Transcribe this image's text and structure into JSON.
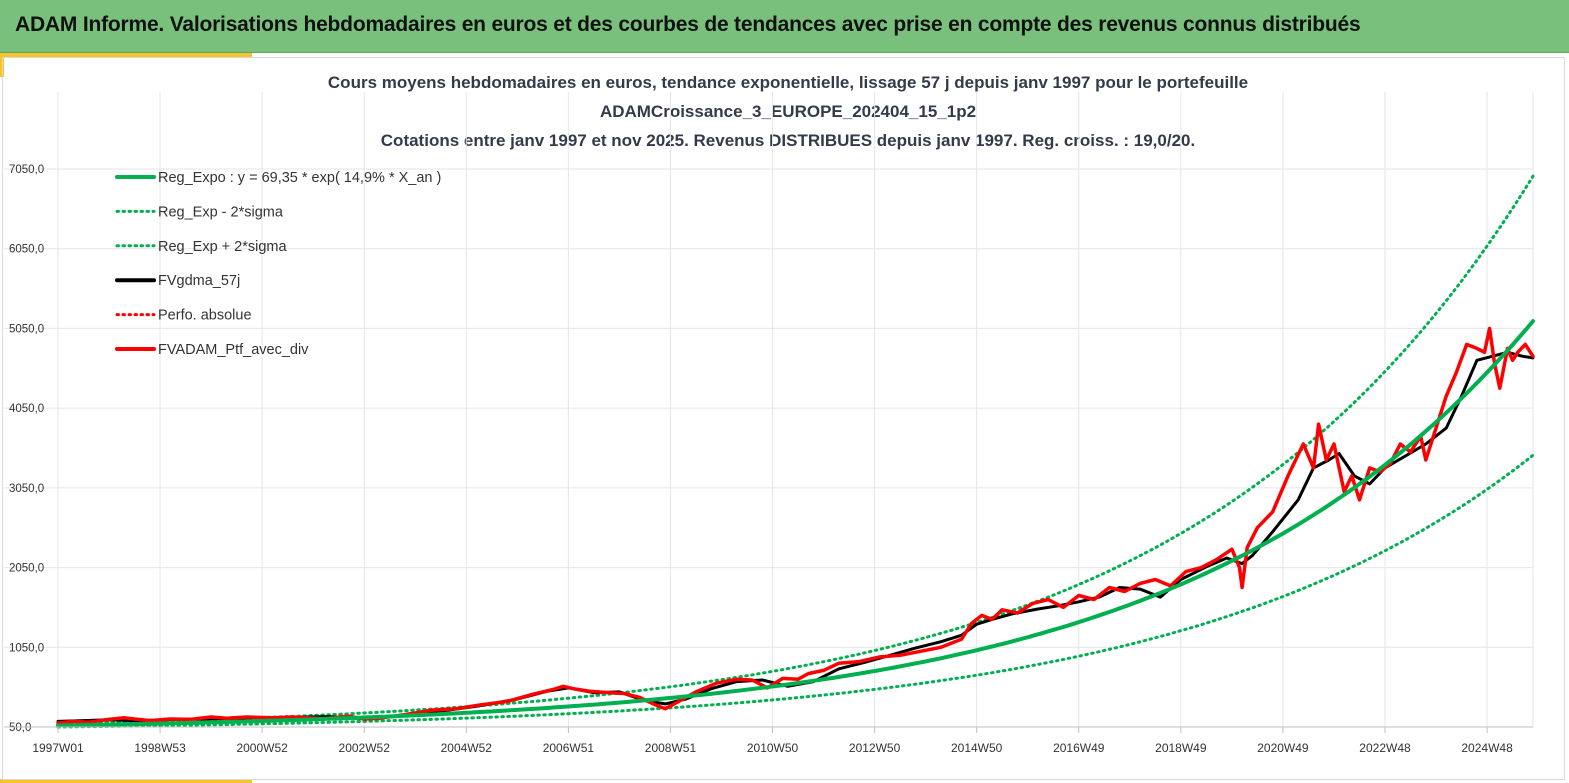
{
  "banner": {
    "title": "ADAM Informe. Valorisations hebdomadaires en euros et des courbes de tendances avec prise en compte des revenus connus distribués"
  },
  "colors": {
    "banner": "#79c07d",
    "accent": "#f7c52b",
    "green": "#00b050",
    "red": "#ff0000",
    "black": "#000000",
    "grid": "#e6e6e6"
  },
  "chart_data": {
    "type": "line",
    "title_lines": [
      "Cours moyens hebdomadaires  en euros, tendance exponentielle, lissage 57 j depuis janv 1997 pour le portefeuille",
      "ADAMCroissance_3_EUROPE_202404_15_1p2",
      "Cotations  entre janv 1997 et nov 2025. Revenus DISTRIBUES depuis janv 1997. Reg. croiss. : 19,0/20."
    ],
    "xlabel": "",
    "ylabel": "",
    "x_tick_labels": [
      "1997W01",
      "1998W53",
      "2000W52",
      "2002W52",
      "2004W52",
      "2006W51",
      "2008W51",
      "2010W50",
      "2012W50",
      "2014W50",
      "2016W49",
      "2018W49",
      "2020W49",
      "2022W48",
      "2024W48"
    ],
    "x_tick_years": [
      1997.0,
      1999.0,
      2001.0,
      2003.0,
      2005.0,
      2007.0,
      2009.0,
      2011.0,
      2013.0,
      2015.0,
      2017.0,
      2019.0,
      2021.0,
      2023.0,
      2025.0
    ],
    "x_range": [
      1997.0,
      2025.9
    ],
    "y_ticks": [
      "50,0",
      "1050,0",
      "2050,0",
      "3050,0",
      "4050,0",
      "5050,0",
      "6050,0",
      "7050,0"
    ],
    "y_tick_values": [
      50,
      1050,
      2050,
      3050,
      4050,
      5050,
      6050,
      7050
    ],
    "ylim": [
      50,
      7050
    ],
    "grid": true,
    "legend_position": "top-left",
    "series": [
      {
        "name": "Reg_Expo : y = 69,35 * exp( 14,9% *  X_an )",
        "color": "#00b050",
        "style": "solid",
        "width": 4,
        "kind": "exp",
        "a": 69.35,
        "k": 0.149
      },
      {
        "name": "Reg_Exp - 2*sigma",
        "color": "#00b050",
        "style": "dotted",
        "width": 3,
        "kind": "exp",
        "a": 50,
        "k": 0.1466
      },
      {
        "name": "Reg_Exp + 2*sigma",
        "color": "#00b050",
        "style": "dotted",
        "width": 3,
        "kind": "exp",
        "a": 92,
        "k": 0.1497
      },
      {
        "name": "FVgdma_57j",
        "color": "#000000",
        "style": "solid",
        "width": 3,
        "kind": "points",
        "x": [
          1997.0,
          1997.5,
          1998.0,
          1998.4,
          1998.8,
          1999.3,
          1999.8,
          2000.3,
          2000.8,
          2001.5,
          2002.3,
          2002.8,
          2003.2,
          2003.8,
          2004.5,
          2005.2,
          2006.0,
          2006.6,
          2007.0,
          2007.5,
          2008.0,
          2008.5,
          2008.9,
          2009.3,
          2009.8,
          2010.3,
          2010.8,
          2011.3,
          2011.8,
          2012.3,
          2012.8,
          2013.3,
          2013.8,
          2014.3,
          2014.7,
          2015.0,
          2015.3,
          2015.7,
          2016.2,
          2016.6,
          2017.0,
          2017.4,
          2017.8,
          2018.2,
          2018.6,
          2019.0,
          2019.5,
          2019.9,
          2020.2,
          2020.4,
          2020.8,
          2021.3,
          2021.6,
          2021.9,
          2022.1,
          2022.4,
          2022.7,
          2023.0,
          2023.4,
          2023.8,
          2024.2,
          2024.5,
          2024.8,
          2025.1,
          2025.4,
          2025.7,
          2025.9
        ],
        "y": [
          120,
          130,
          140,
          130,
          135,
          145,
          150,
          155,
          165,
          170,
          180,
          160,
          160,
          200,
          250,
          310,
          400,
          500,
          540,
          480,
          490,
          380,
          340,
          400,
          530,
          620,
          640,
          560,
          620,
          780,
          860,
          950,
          1040,
          1120,
          1200,
          1340,
          1400,
          1470,
          1530,
          1570,
          1620,
          1680,
          1800,
          1780,
          1680,
          1900,
          2060,
          2170,
          2100,
          2200,
          2500,
          2900,
          3300,
          3400,
          3480,
          3200,
          3100,
          3300,
          3450,
          3600,
          3800,
          4200,
          4650,
          4700,
          4750,
          4700,
          4680
        ]
      },
      {
        "name": "Perfo. absolue",
        "color": "#ff0000",
        "style": "dotted",
        "width": 3,
        "kind": "legend-only"
      },
      {
        "name": "FVADAM_Ptf_avec_div",
        "color": "#ff0000",
        "style": "solid",
        "width": 3.5,
        "kind": "points",
        "x": [
          1997.0,
          1997.3,
          1997.6,
          1998.0,
          1998.3,
          1998.5,
          1998.8,
          1999.2,
          1999.6,
          2000.0,
          2000.3,
          2000.7,
          2001.2,
          2001.6,
          2002.2,
          2002.7,
          2003.0,
          2003.3,
          2003.8,
          2004.3,
          2004.8,
          2005.3,
          2005.8,
          2006.3,
          2006.7,
          2006.9,
          2007.1,
          2007.4,
          2007.8,
          2008.1,
          2008.4,
          2008.7,
          2008.9,
          2009.1,
          2009.5,
          2009.9,
          2010.3,
          2010.6,
          2010.9,
          2011.2,
          2011.5,
          2011.7,
          2012.0,
          2012.3,
          2012.7,
          2013.1,
          2013.5,
          2013.9,
          2014.3,
          2014.7,
          2014.9,
          2015.1,
          2015.3,
          2015.5,
          2015.8,
          2016.1,
          2016.4,
          2016.7,
          2017.0,
          2017.3,
          2017.6,
          2017.9,
          2018.2,
          2018.5,
          2018.8,
          2019.1,
          2019.4,
          2019.7,
          2020.0,
          2020.15,
          2020.2,
          2020.3,
          2020.5,
          2020.8,
          2021.1,
          2021.4,
          2021.6,
          2021.7,
          2021.85,
          2022.0,
          2022.2,
          2022.35,
          2022.5,
          2022.7,
          2022.9,
          2023.1,
          2023.3,
          2023.5,
          2023.7,
          2023.8,
          2024.0,
          2024.2,
          2024.4,
          2024.6,
          2024.8,
          2024.95,
          2025.05,
          2025.15,
          2025.25,
          2025.4,
          2025.5,
          2025.6,
          2025.75,
          2025.9
        ],
        "y": [
          100,
          120,
          110,
          145,
          165,
          150,
          130,
          150,
          145,
          175,
          160,
          175,
          165,
          175,
          155,
          185,
          150,
          160,
          205,
          260,
          280,
          330,
          370,
          460,
          520,
          560,
          530,
          500,
          480,
          470,
          420,
          330,
          280,
          350,
          490,
          600,
          650,
          640,
          540,
          660,
          650,
          720,
          760,
          850,
          870,
          930,
          950,
          1000,
          1050,
          1150,
          1350,
          1450,
          1400,
          1520,
          1480,
          1600,
          1650,
          1550,
          1700,
          1650,
          1800,
          1750,
          1850,
          1900,
          1820,
          2000,
          2050,
          2150,
          2280,
          2050,
          1800,
          2300,
          2550,
          2750,
          3200,
          3600,
          3300,
          3850,
          3400,
          3600,
          3000,
          3200,
          2900,
          3300,
          3250,
          3350,
          3600,
          3500,
          3700,
          3400,
          3800,
          4200,
          4500,
          4850,
          4800,
          4750,
          5050,
          4600,
          4300,
          4800,
          4650,
          4750,
          4850,
          4700
        ]
      }
    ]
  }
}
